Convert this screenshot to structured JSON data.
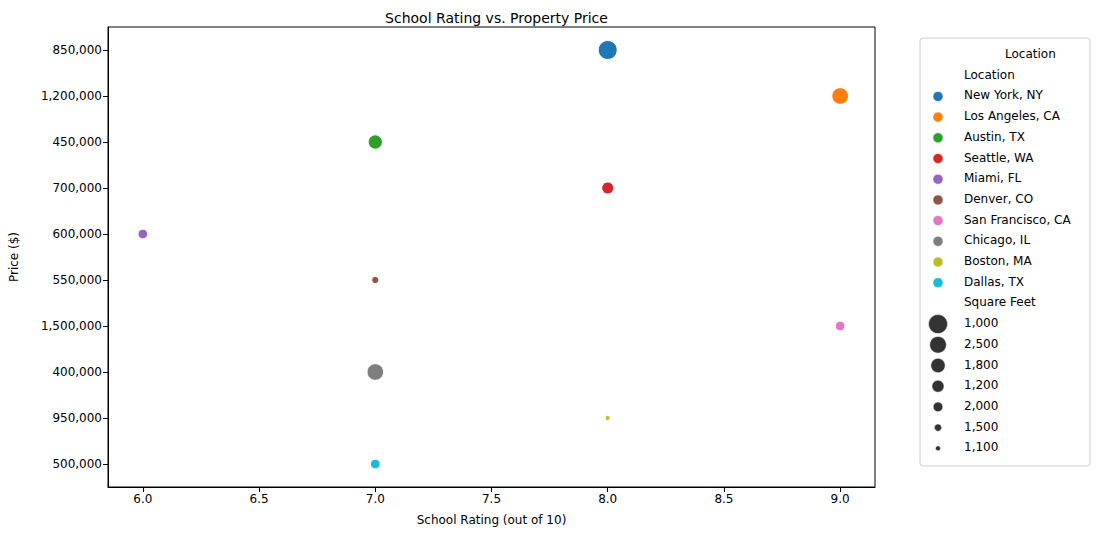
{
  "chart_data": {
    "type": "scatter",
    "title": "School Rating vs. Property Price",
    "x_label": "School Rating (out of 10)",
    "y_label": "Price ($)",
    "xlim": [
      5.85,
      9.15
    ],
    "xticks": [
      {
        "value": 6,
        "label": "6.0"
      },
      {
        "value": 6.5,
        "label": "6.5"
      },
      {
        "value": 7,
        "label": "7.0"
      },
      {
        "value": 7.5,
        "label": "7.5"
      },
      {
        "value": 8,
        "label": "8.0"
      },
      {
        "value": 8.5,
        "label": "8.5"
      },
      {
        "value": 9,
        "label": "9.0"
      }
    ],
    "y_categories": [
      "850,000",
      "1,200,000",
      "450,000",
      "700,000",
      "600,000",
      "550,000",
      "1,500,000",
      "400,000",
      "950,000",
      "500,000"
    ],
    "grid": false,
    "legend": "outside right",
    "legend_title": "Location",
    "hue_title": "Location",
    "marker": "circle",
    "series": [
      {
        "name": "New York, NY",
        "color": "#1f77b4",
        "x": [
          8
        ],
        "y": [
          "850,000"
        ],
        "square_feet": [
          1000
        ]
      },
      {
        "name": "Los Angeles, CA",
        "color": "#ff7f0e",
        "x": [
          9
        ],
        "y": [
          "1,200,000"
        ],
        "square_feet": [
          2500
        ]
      },
      {
        "name": "Austin, TX",
        "color": "#2ca02c",
        "x": [
          7
        ],
        "y": [
          "450,000"
        ],
        "square_feet": [
          1800
        ]
      },
      {
        "name": "Seattle, WA",
        "color": "#d62728",
        "x": [
          8
        ],
        "y": [
          "700,000"
        ],
        "square_feet": [
          1200
        ]
      },
      {
        "name": "Miami, FL",
        "color": "#9467bd",
        "x": [
          6
        ],
        "y": [
          "600,000"
        ],
        "square_feet": [
          2000
        ]
      },
      {
        "name": "Denver, CO",
        "color": "#8c564b",
        "x": [
          7
        ],
        "y": [
          "550,000"
        ],
        "square_feet": [
          1500
        ]
      },
      {
        "name": "San Francisco, CA",
        "color": "#e377c2",
        "x": [
          9
        ],
        "y": [
          "1,500,000"
        ],
        "square_feet": [
          2000
        ]
      },
      {
        "name": "Chicago, IL",
        "color": "#7f7f7f",
        "x": [
          7
        ],
        "y": [
          "400,000"
        ],
        "square_feet": [
          2500
        ]
      },
      {
        "name": "Boston, MA",
        "color": "#bcbd22",
        "x": [
          8
        ],
        "y": [
          "950,000"
        ],
        "square_feet": [
          1100
        ]
      },
      {
        "name": "Dallas, TX",
        "color": "#17becf",
        "x": [
          7
        ],
        "y": [
          "500,000"
        ],
        "square_feet": [
          2000
        ]
      }
    ],
    "size_legend": {
      "title": "Square Feet",
      "values": [
        {
          "value": 1000,
          "label": "1,000"
        },
        {
          "value": 2500,
          "label": "2,500"
        },
        {
          "value": 1800,
          "label": "1,800"
        },
        {
          "value": 1200,
          "label": "1,200"
        },
        {
          "value": 2000,
          "label": "2,000"
        },
        {
          "value": 1500,
          "label": "1,500"
        },
        {
          "value": 1100,
          "label": "1,100"
        }
      ]
    }
  }
}
